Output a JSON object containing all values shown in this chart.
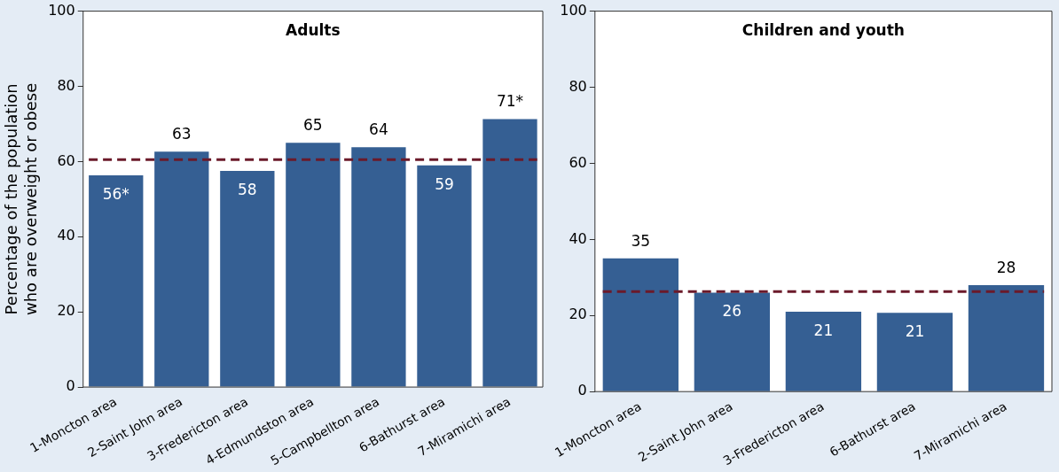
{
  "chart_data": [
    {
      "type": "bar",
      "title": "Adults",
      "ylabel": "Percentage of the population who are overweight or obese",
      "categories": [
        "1-Moncton area",
        "2-Saint John area",
        "3-Fredericton area",
        "4-Edmundston area",
        "5-Campbellton area",
        "6-Bathurst area",
        "7-Miramichi area"
      ],
      "values": [
        56.3,
        62.6,
        57.5,
        65,
        63.8,
        59,
        71.3
      ],
      "value_labels": [
        "56*",
        "63",
        "58",
        "65",
        "64",
        "59",
        "71*"
      ],
      "color": "#355f93",
      "ylim": [
        0,
        100
      ],
      "yticks": [
        0,
        20,
        40,
        60,
        80,
        100
      ],
      "grid": false,
      "ref_lines": [
        {
          "axis": "y",
          "value": 60.5,
          "color": "#6b1a2a",
          "line_style": "dashed"
        }
      ]
    },
    {
      "type": "bar",
      "title": "Children and youth",
      "categories": [
        "1-Moncton area",
        "2-Saint John area",
        "3-Fredericton area",
        "6-Bathurst area",
        "7-Miramichi area"
      ],
      "values": [
        35,
        26,
        21,
        20.7,
        28
      ],
      "value_labels": [
        "35",
        "26",
        "21",
        "21",
        "28"
      ],
      "color": "#355f93",
      "ylim": [
        0,
        100
      ],
      "yticks": [
        0,
        20,
        40,
        60,
        80,
        100
      ],
      "grid": false,
      "ref_lines": [
        {
          "axis": "y",
          "value": 26.3,
          "color": "#6b1a2a",
          "line_style": "dashed"
        }
      ]
    }
  ]
}
